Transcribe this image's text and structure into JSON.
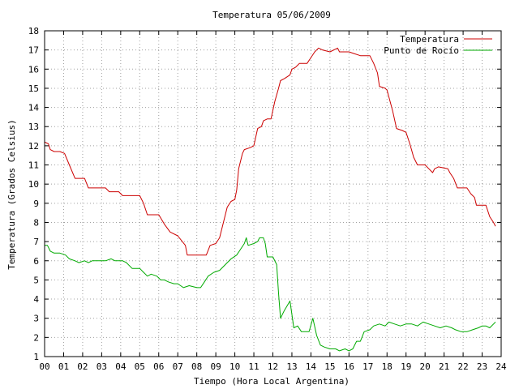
{
  "chart_data": {
    "type": "line",
    "title": "Temperatura 05/06/2009",
    "xlabel": "Tiempo (Hora Local Argentina)",
    "ylabel": "Temperatura (Grados Celsius)",
    "xlim": [
      0,
      24
    ],
    "ylim": [
      1,
      18
    ],
    "grid": true,
    "legend_position": "top-right",
    "x_ticks": [
      "00",
      "01",
      "02",
      "03",
      "04",
      "05",
      "06",
      "07",
      "08",
      "09",
      "10",
      "11",
      "12",
      "13",
      "14",
      "15",
      "16",
      "17",
      "18",
      "19",
      "20",
      "21",
      "22",
      "23",
      "24"
    ],
    "y_ticks": [
      "1",
      "2",
      "3",
      "4",
      "5",
      "6",
      "7",
      "8",
      "9",
      "10",
      "11",
      "12",
      "13",
      "14",
      "15",
      "16",
      "17",
      "18"
    ],
    "series": [
      {
        "name": "Temperatura",
        "color": "#cc0000",
        "points": [
          [
            0.0,
            12.2
          ],
          [
            0.2,
            12.1
          ],
          [
            0.3,
            11.8
          ],
          [
            0.5,
            11.7
          ],
          [
            0.8,
            11.7
          ],
          [
            1.05,
            11.6
          ],
          [
            1.3,
            11.0
          ],
          [
            1.6,
            10.3
          ],
          [
            2.1,
            10.3
          ],
          [
            2.3,
            9.8
          ],
          [
            2.7,
            9.8
          ],
          [
            3.2,
            9.8
          ],
          [
            3.4,
            9.6
          ],
          [
            3.9,
            9.6
          ],
          [
            4.1,
            9.4
          ],
          [
            4.4,
            9.4
          ],
          [
            4.8,
            9.4
          ],
          [
            5.0,
            9.4
          ],
          [
            5.2,
            9.0
          ],
          [
            5.4,
            8.4
          ],
          [
            5.8,
            8.4
          ],
          [
            6.0,
            8.4
          ],
          [
            6.3,
            7.9
          ],
          [
            6.6,
            7.5
          ],
          [
            7.0,
            7.3
          ],
          [
            7.4,
            6.8
          ],
          [
            7.5,
            6.3
          ],
          [
            8.0,
            6.3
          ],
          [
            8.5,
            6.3
          ],
          [
            8.7,
            6.8
          ],
          [
            9.0,
            6.9
          ],
          [
            9.2,
            7.2
          ],
          [
            9.4,
            8.0
          ],
          [
            9.6,
            8.8
          ],
          [
            9.8,
            9.1
          ],
          [
            10.0,
            9.2
          ],
          [
            10.1,
            9.7
          ],
          [
            10.2,
            10.8
          ],
          [
            10.4,
            11.6
          ],
          [
            10.5,
            11.8
          ],
          [
            10.8,
            11.9
          ],
          [
            11.0,
            12.0
          ],
          [
            11.2,
            12.9
          ],
          [
            11.4,
            13.0
          ],
          [
            11.5,
            13.3
          ],
          [
            11.7,
            13.4
          ],
          [
            11.9,
            13.4
          ],
          [
            12.1,
            14.3
          ],
          [
            12.3,
            15.0
          ],
          [
            12.4,
            15.4
          ],
          [
            12.6,
            15.5
          ],
          [
            12.9,
            15.7
          ],
          [
            13.0,
            16.0
          ],
          [
            13.2,
            16.1
          ],
          [
            13.4,
            16.3
          ],
          [
            13.8,
            16.3
          ],
          [
            14.0,
            16.6
          ],
          [
            14.2,
            16.9
          ],
          [
            14.4,
            17.1
          ],
          [
            14.6,
            17.0
          ],
          [
            15.0,
            16.9
          ],
          [
            15.4,
            17.1
          ],
          [
            15.5,
            16.9
          ],
          [
            16.0,
            16.9
          ],
          [
            16.3,
            16.8
          ],
          [
            16.6,
            16.7
          ],
          [
            17.1,
            16.7
          ],
          [
            17.3,
            16.3
          ],
          [
            17.5,
            15.8
          ],
          [
            17.6,
            15.1
          ],
          [
            17.9,
            15.0
          ],
          [
            18.0,
            14.9
          ],
          [
            18.3,
            13.8
          ],
          [
            18.5,
            12.9
          ],
          [
            18.8,
            12.8
          ],
          [
            19.0,
            12.7
          ],
          [
            19.2,
            12.1
          ],
          [
            19.4,
            11.4
          ],
          [
            19.6,
            11.0
          ],
          [
            20.0,
            11.0
          ],
          [
            20.2,
            10.8
          ],
          [
            20.4,
            10.6
          ],
          [
            20.5,
            10.8
          ],
          [
            20.7,
            10.9
          ],
          [
            21.2,
            10.8
          ],
          [
            21.3,
            10.6
          ],
          [
            21.5,
            10.3
          ],
          [
            21.7,
            9.8
          ],
          [
            22.2,
            9.8
          ],
          [
            22.4,
            9.5
          ],
          [
            22.6,
            9.3
          ],
          [
            22.7,
            8.9
          ],
          [
            23.2,
            8.9
          ],
          [
            23.4,
            8.3
          ],
          [
            23.6,
            8.0
          ],
          [
            23.7,
            7.8
          ]
        ]
      },
      {
        "name": "Punto de Rocío",
        "color": "#00aa00",
        "points": [
          [
            0.0,
            6.8
          ],
          [
            0.15,
            6.8
          ],
          [
            0.3,
            6.5
          ],
          [
            0.5,
            6.4
          ],
          [
            0.8,
            6.4
          ],
          [
            1.1,
            6.3
          ],
          [
            1.3,
            6.1
          ],
          [
            1.6,
            6.0
          ],
          [
            1.8,
            5.9
          ],
          [
            2.1,
            6.0
          ],
          [
            2.3,
            5.9
          ],
          [
            2.5,
            6.0
          ],
          [
            2.8,
            6.0
          ],
          [
            3.2,
            6.0
          ],
          [
            3.5,
            6.1
          ],
          [
            3.7,
            6.0
          ],
          [
            4.1,
            6.0
          ],
          [
            4.3,
            5.9
          ],
          [
            4.6,
            5.6
          ],
          [
            5.0,
            5.6
          ],
          [
            5.2,
            5.4
          ],
          [
            5.4,
            5.2
          ],
          [
            5.6,
            5.3
          ],
          [
            5.9,
            5.2
          ],
          [
            6.1,
            5.0
          ],
          [
            6.3,
            5.0
          ],
          [
            6.5,
            4.9
          ],
          [
            6.8,
            4.8
          ],
          [
            7.0,
            4.8
          ],
          [
            7.3,
            4.6
          ],
          [
            7.6,
            4.7
          ],
          [
            8.0,
            4.6
          ],
          [
            8.2,
            4.6
          ],
          [
            8.4,
            4.9
          ],
          [
            8.6,
            5.2
          ],
          [
            8.9,
            5.4
          ],
          [
            9.2,
            5.5
          ],
          [
            9.4,
            5.7
          ],
          [
            9.6,
            5.9
          ],
          [
            9.8,
            6.1
          ],
          [
            10.1,
            6.3
          ],
          [
            10.3,
            6.6
          ],
          [
            10.5,
            6.9
          ],
          [
            10.6,
            7.2
          ],
          [
            10.7,
            6.8
          ],
          [
            11.0,
            6.9
          ],
          [
            11.2,
            7.0
          ],
          [
            11.3,
            7.2
          ],
          [
            11.5,
            7.2
          ],
          [
            11.6,
            6.9
          ],
          [
            11.7,
            6.2
          ],
          [
            12.0,
            6.2
          ],
          [
            12.2,
            5.8
          ],
          [
            12.3,
            4.3
          ],
          [
            12.4,
            3.0
          ],
          [
            12.6,
            3.4
          ],
          [
            12.9,
            3.9
          ],
          [
            13.1,
            2.5
          ],
          [
            13.3,
            2.6
          ],
          [
            13.5,
            2.3
          ],
          [
            13.9,
            2.3
          ],
          [
            14.1,
            3.0
          ],
          [
            14.3,
            2.1
          ],
          [
            14.5,
            1.6
          ],
          [
            14.7,
            1.5
          ],
          [
            15.0,
            1.4
          ],
          [
            15.3,
            1.4
          ],
          [
            15.5,
            1.3
          ],
          [
            15.8,
            1.4
          ],
          [
            16.0,
            1.3
          ],
          [
            16.2,
            1.4
          ],
          [
            16.4,
            1.8
          ],
          [
            16.6,
            1.8
          ],
          [
            16.8,
            2.3
          ],
          [
            17.1,
            2.4
          ],
          [
            17.3,
            2.6
          ],
          [
            17.6,
            2.7
          ],
          [
            17.9,
            2.6
          ],
          [
            18.1,
            2.8
          ],
          [
            18.4,
            2.7
          ],
          [
            18.7,
            2.6
          ],
          [
            19.0,
            2.7
          ],
          [
            19.3,
            2.7
          ],
          [
            19.6,
            2.6
          ],
          [
            19.9,
            2.8
          ],
          [
            20.2,
            2.7
          ],
          [
            20.5,
            2.6
          ],
          [
            20.8,
            2.5
          ],
          [
            21.1,
            2.6
          ],
          [
            21.4,
            2.5
          ],
          [
            21.6,
            2.4
          ],
          [
            21.9,
            2.3
          ],
          [
            22.2,
            2.3
          ],
          [
            22.5,
            2.4
          ],
          [
            22.8,
            2.5
          ],
          [
            23.0,
            2.6
          ],
          [
            23.2,
            2.6
          ],
          [
            23.4,
            2.5
          ],
          [
            23.6,
            2.7
          ],
          [
            23.7,
            2.8
          ]
        ]
      }
    ]
  }
}
